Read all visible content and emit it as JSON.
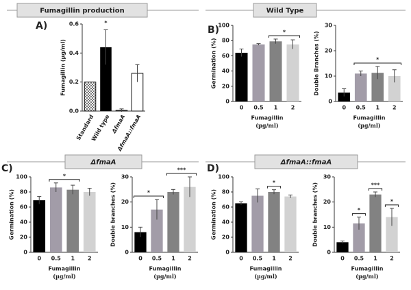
{
  "chart_data": [
    {
      "type": "bar",
      "panel": "A)",
      "header": "Fumagillin production",
      "ylabel": "Fumagillin (µg/ml)",
      "categories": [
        "Standard",
        "Wild type",
        "ΔfmaA",
        "ΔfmaA::fmaA"
      ],
      "values": [
        0.2,
        0.44,
        0.005,
        0.26
      ],
      "errors": [
        0,
        0.12,
        0.01,
        0.06
      ],
      "colors": [
        "#777777",
        "#000000",
        "#ffffff",
        "#ffffff"
      ],
      "fill_styles": [
        "checker",
        "solid",
        "solid",
        "solid"
      ],
      "ylim": [
        0,
        0.6
      ],
      "yticks": [
        {
          "value": 0,
          "label": "0.0"
        },
        {
          "value": 0.2,
          "label": "0.2"
        },
        {
          "value": 0.4,
          "label": "0.4"
        },
        {
          "value": 0.6,
          "label": "0.6"
        }
      ],
      "annotations": [
        {
          "start": "Wild type",
          "end": "Wild type",
          "text": "*",
          "line": false
        }
      ]
    },
    {
      "type": "bar",
      "panel": "B)",
      "header": "Wild Type",
      "ylabel": "Germination (%)",
      "xlabel": "Fumagillin",
      "xlabel_unit": "(µg/ml)",
      "categories": [
        "0",
        "0.5",
        "1",
        "2"
      ],
      "values": [
        64,
        75,
        79,
        75
      ],
      "errors": [
        5,
        1,
        3,
        6
      ],
      "colors": [
        "#000000",
        "#a29ca8",
        "#828282",
        "#d2d2d2"
      ],
      "ylim": [
        0,
        100
      ],
      "yticks": [
        0,
        20,
        40,
        60,
        80,
        100
      ],
      "annotations": [
        {
          "start": "1",
          "end": "2",
          "text": "*",
          "line": true
        }
      ]
    },
    {
      "type": "bar",
      "ylabel": "Double Branches (%)",
      "xlabel": "Fumagillin",
      "xlabel_unit": "(µg/ml)",
      "categories": [
        "0",
        "0.5",
        "1",
        "2"
      ],
      "values": [
        3.5,
        11,
        11.3,
        10
      ],
      "errors": [
        1.5,
        1,
        2.5,
        2.5
      ],
      "colors": [
        "#000000",
        "#a29ca8",
        "#828282",
        "#d2d2d2"
      ],
      "ylim": [
        0,
        30
      ],
      "yticks": [
        0,
        10,
        20,
        30
      ],
      "annotations": [
        {
          "start": "0.5",
          "end": "2",
          "text": "*",
          "line": true
        }
      ]
    },
    {
      "type": "bar",
      "panel": "C)",
      "header": "ΔfmaA",
      "ylabel": "Germination (%)",
      "xlabel": "Fumagillin",
      "xlabel_unit": "(µg/ml)",
      "categories": [
        "0",
        "0.5",
        "1",
        "2"
      ],
      "values": [
        69,
        86,
        83,
        80
      ],
      "errors": [
        5,
        6,
        6,
        5
      ],
      "colors": [
        "#000000",
        "#a29ca8",
        "#828282",
        "#d2d2d2"
      ],
      "ylim": [
        0,
        100
      ],
      "yticks": [
        0,
        20,
        40,
        60,
        80,
        100
      ],
      "annotations": [
        {
          "start": "0.5",
          "end": "1",
          "text": "*",
          "line": true
        }
      ]
    },
    {
      "type": "bar",
      "ylabel": "Double branches (%)",
      "xlabel": "Fumagillin",
      "xlabel_unit": "(µg/ml)",
      "categories": [
        "0",
        "0.5",
        "1",
        "2"
      ],
      "values": [
        8,
        17,
        24,
        26
      ],
      "errors": [
        2,
        4,
        1,
        4
      ],
      "colors": [
        "#000000",
        "#a29ca8",
        "#828282",
        "#d2d2d2"
      ],
      "ylim": [
        0,
        30
      ],
      "yticks": [
        0,
        10,
        20,
        30
      ],
      "annotations": [
        {
          "start": "0",
          "end": "0.5",
          "text": "*",
          "line": true
        },
        {
          "start": "1",
          "end": "2",
          "text": "***",
          "line": true
        }
      ]
    },
    {
      "type": "bar",
      "panel": "D)",
      "header": "ΔfmaA::fmaA",
      "ylabel": "Germination (%)",
      "xlabel": "Fumagillin",
      "xlabel_unit": "(µg/ml)",
      "categories": [
        "0",
        "0.5",
        "1",
        "2"
      ],
      "values": [
        65,
        75,
        80,
        74
      ],
      "errors": [
        2,
        9,
        3,
        2
      ],
      "colors": [
        "#000000",
        "#a29ca8",
        "#828282",
        "#d2d2d2"
      ],
      "ylim": [
        0,
        100
      ],
      "yticks": [
        0,
        20,
        40,
        60,
        80,
        100
      ],
      "annotations": [
        {
          "start": "1",
          "end": "1",
          "text": "*",
          "line": true
        }
      ]
    },
    {
      "type": "bar",
      "ylabel": "Double branches (%)",
      "xlabel": "Fumagillin",
      "xlabel_unit": "(µg/ml)",
      "categories": [
        "0",
        "0.5",
        "1",
        "2"
      ],
      "values": [
        4,
        11.5,
        23,
        14
      ],
      "errors": [
        0.5,
        2.5,
        1,
        3.5
      ],
      "colors": [
        "#000000",
        "#a29ca8",
        "#828282",
        "#d2d2d2"
      ],
      "ylim": [
        0,
        30
      ],
      "yticks": [
        0,
        10,
        20,
        30
      ],
      "annotations": [
        {
          "start": "0.5",
          "end": "0.5",
          "text": "*",
          "line": true
        },
        {
          "start": "1",
          "end": "1",
          "text": "***",
          "line": true
        },
        {
          "start": "2",
          "end": "2",
          "text": "*",
          "line": true
        }
      ]
    }
  ]
}
